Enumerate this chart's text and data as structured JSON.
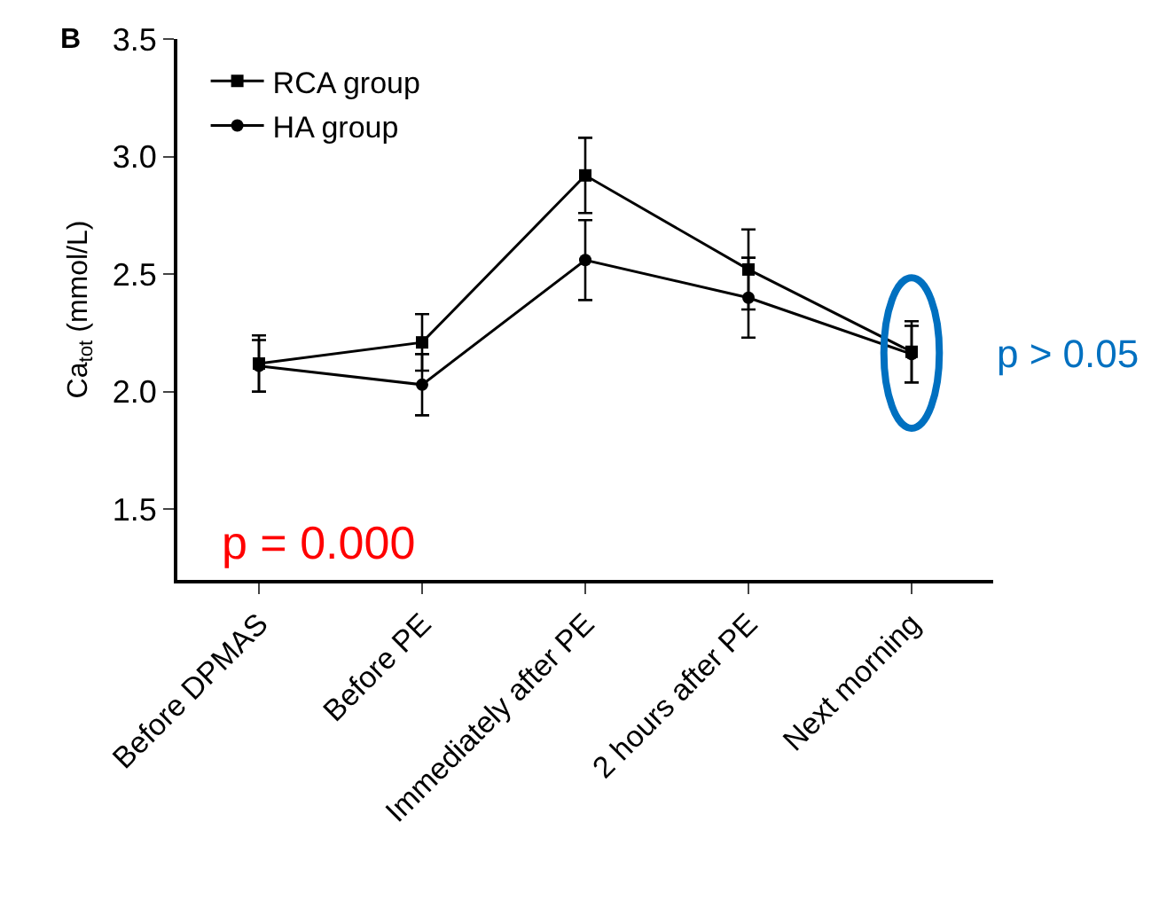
{
  "chart_data": {
    "type": "line",
    "ylabel": "Ca$_{tot}$ (mmol/L)",
    "categories": [
      "Before DPMAS",
      "Before PE",
      "Immediately after PE",
      "2 hours after PE",
      "Next morning"
    ],
    "series": [
      {
        "name": "RCA group",
        "color": "#000000",
        "marker": "square",
        "values": [
          2.12,
          2.21,
          2.92,
          2.52,
          2.17
        ],
        "errors": [
          0.12,
          0.12,
          0.16,
          0.17,
          0.13
        ]
      },
      {
        "name": "HA group",
        "color": "#000000",
        "marker": "circle",
        "values": [
          2.11,
          2.03,
          2.56,
          2.4,
          2.16
        ],
        "errors": [
          0.11,
          0.13,
          0.17,
          0.17,
          0.12
        ]
      }
    ],
    "ylim": [
      1.2,
      3.5
    ],
    "yticks": [
      1.5,
      {
        "value": 2,
        "label": "2.0"
      },
      2.5,
      {
        "value": 3,
        "label": "3.0"
      },
      3.5
    ],
    "annotations": [
      "B",
      "p = 0.000",
      "p > 0.05"
    ],
    "legend": "top left",
    "line_style": "solid"
  }
}
